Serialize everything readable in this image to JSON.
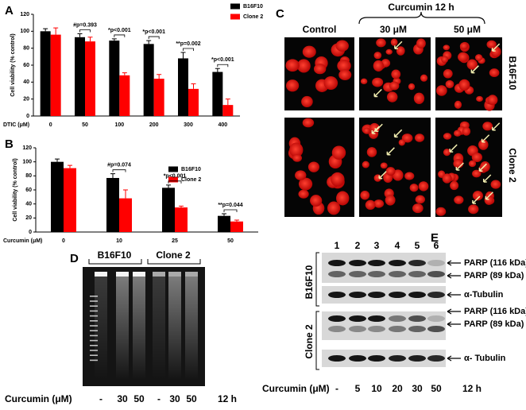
{
  "chart_data": [
    {
      "type": "bar",
      "panel_label": "A",
      "x_label": "DTIC (μM)",
      "y_label": "Cell viability (% control)",
      "categories": [
        "0",
        "50",
        "100",
        "200",
        "300",
        "400"
      ],
      "series": [
        {
          "name": "B16F10",
          "color": "#000000",
          "values": [
            100,
            93,
            89,
            85,
            68,
            52
          ],
          "errors": [
            3,
            4,
            2,
            4,
            7,
            4
          ]
        },
        {
          "name": "Clone 2",
          "color": "#ff0000",
          "values": [
            96,
            88,
            48,
            44,
            32,
            13
          ],
          "errors": [
            8,
            5,
            3,
            5,
            6,
            7
          ]
        }
      ],
      "annotations": [
        null,
        "#p=0.393",
        "*p<0.001",
        "*p<0.001",
        "**p=0.002",
        "*p<0.001"
      ],
      "ylim": [
        0,
        120
      ],
      "yticks": [
        0,
        20,
        40,
        60,
        80,
        100,
        120
      ]
    },
    {
      "type": "bar",
      "panel_label": "B",
      "x_label": "Curcumin (μM)",
      "y_label": "Cell viability (% control)",
      "categories": [
        "0",
        "10",
        "25",
        "50"
      ],
      "series": [
        {
          "name": "B16F10",
          "color": "#000000",
          "values": [
            100,
            77,
            63,
            23
          ],
          "errors": [
            4,
            6,
            4,
            3
          ]
        },
        {
          "name": "Clone 2",
          "color": "#ff0000",
          "values": [
            91,
            48,
            35,
            15
          ],
          "errors": [
            4,
            12,
            2,
            2
          ]
        }
      ],
      "annotations": [
        null,
        "#p=0.074",
        "*p<0.001",
        "**p=0.044"
      ],
      "ylim": [
        0,
        120
      ],
      "yticks": [
        0,
        20,
        40,
        60,
        80,
        100,
        120
      ]
    }
  ],
  "panel_c": {
    "label": "C",
    "treatment": "Curcumin 12 h",
    "columns": [
      "Control",
      "30 μM",
      "50 μM"
    ],
    "rows": [
      "B16F10",
      "Clone 2"
    ]
  },
  "panel_d": {
    "label": "D",
    "groups": [
      "B16F10",
      "Clone 2"
    ],
    "x_label": "Curcumin (μM)",
    "lanes": [
      "-",
      "30",
      "50",
      "-",
      "30",
      "50"
    ],
    "time": "12 h"
  },
  "panel_e": {
    "label": "E",
    "lane_numbers": [
      "1",
      "2",
      "3",
      "4",
      "5",
      "6"
    ],
    "blots": [
      {
        "cell_line": "B16F10",
        "bands": [
          "PARP (116 kDa)",
          "PARP (89 kDa)",
          "α-Tubulin"
        ]
      },
      {
        "cell_line": "Clone 2",
        "bands": [
          "PARP (116 kDa)",
          "PARP (89 kDa)",
          "α- Tubulin"
        ]
      }
    ],
    "x_label": "Curcumin (μM)",
    "lanes": [
      "-",
      "5",
      "10",
      "20",
      "30",
      "50"
    ],
    "time": "12 h"
  }
}
